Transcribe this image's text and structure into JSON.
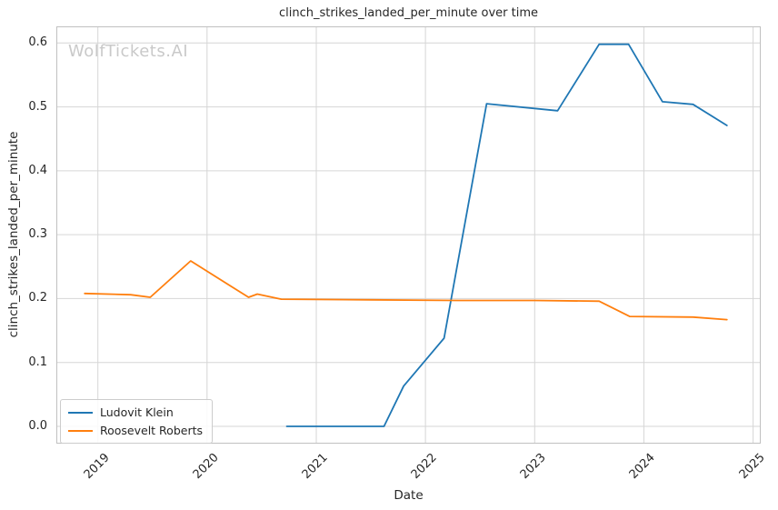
{
  "watermark": "WolfTickets.AI",
  "colors": {
    "grid": "#d6d6d6",
    "spine": "#c0c0c0",
    "text": "#262626",
    "watermark": "#c9c9c9",
    "series_blue": "#1f77b4",
    "series_orange": "#ff7f0e"
  },
  "chart_data": {
    "type": "line",
    "title": "clinch_strikes_landed_per_minute over time",
    "xlabel": "Date",
    "ylabel": "clinch_strikes_landed_per_minute",
    "grid": true,
    "legend_position": "lower left",
    "xlim": [
      2018.62,
      2025.07
    ],
    "ylim": [
      -0.027,
      0.626
    ],
    "x_ticks": [
      {
        "label": "2019",
        "value": 2019
      },
      {
        "label": "2020",
        "value": 2020
      },
      {
        "label": "2021",
        "value": 2021
      },
      {
        "label": "2022",
        "value": 2022
      },
      {
        "label": "2023",
        "value": 2023
      },
      {
        "label": "2024",
        "value": 2024
      },
      {
        "label": "2025",
        "value": 2025
      }
    ],
    "y_ticks": [
      {
        "label": "0.0",
        "value": 0.0
      },
      {
        "label": "0.1",
        "value": 0.1
      },
      {
        "label": "0.2",
        "value": 0.2
      },
      {
        "label": "0.3",
        "value": 0.3
      },
      {
        "label": "0.4",
        "value": 0.4
      },
      {
        "label": "0.5",
        "value": 0.5
      },
      {
        "label": "0.6",
        "value": 0.6
      }
    ],
    "series": [
      {
        "name": "Ludovit Klein",
        "color": "#1f77b4",
        "points": [
          [
            2020.73,
            0.0
          ],
          [
            2021.62,
            0.0
          ],
          [
            2021.8,
            0.063
          ],
          [
            2022.17,
            0.138
          ],
          [
            2022.56,
            0.505
          ],
          [
            2023.21,
            0.494
          ],
          [
            2023.59,
            0.598
          ],
          [
            2023.86,
            0.598
          ],
          [
            2024.17,
            0.508
          ],
          [
            2024.45,
            0.504
          ],
          [
            2024.76,
            0.471
          ]
        ]
      },
      {
        "name": "Roosevelt Roberts",
        "color": "#ff7f0e",
        "points": [
          [
            2018.88,
            0.208
          ],
          [
            2019.3,
            0.206
          ],
          [
            2019.48,
            0.202
          ],
          [
            2019.85,
            0.259
          ],
          [
            2020.38,
            0.202
          ],
          [
            2020.46,
            0.207
          ],
          [
            2020.68,
            0.199
          ],
          [
            2021.5,
            0.198
          ],
          [
            2022.3,
            0.197
          ],
          [
            2023.0,
            0.197
          ],
          [
            2023.59,
            0.196
          ],
          [
            2023.87,
            0.172
          ],
          [
            2024.45,
            0.171
          ],
          [
            2024.76,
            0.167
          ]
        ]
      }
    ]
  }
}
